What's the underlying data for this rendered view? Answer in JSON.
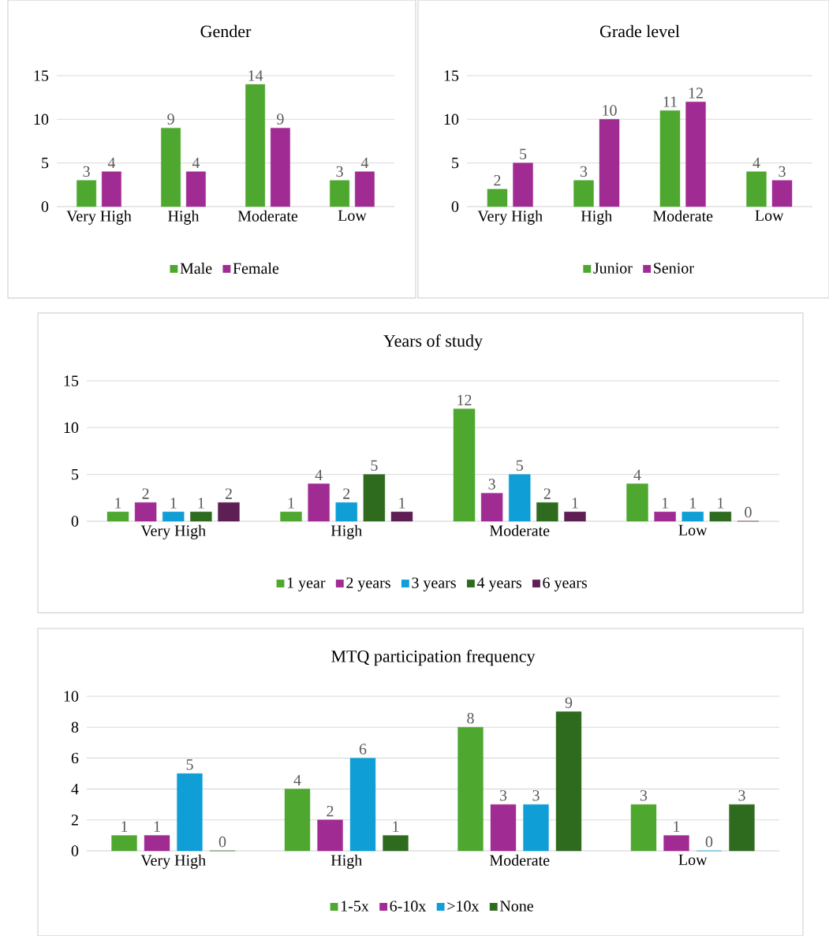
{
  "chart_data": [
    {
      "type": "bar",
      "title": "Gender",
      "categories": [
        "Very High",
        "High",
        "Moderate",
        "Low"
      ],
      "series": [
        {
          "name": "Male",
          "color": "#4ea72e",
          "values": [
            3,
            9,
            14,
            3
          ]
        },
        {
          "name": "Female",
          "color": "#a02b93",
          "values": [
            4,
            4,
            9,
            4
          ]
        }
      ],
      "ylim": [
        0,
        15
      ],
      "yticks": [
        0,
        5,
        10,
        15
      ],
      "grid": "y",
      "legend": "bottom",
      "data_labels": true
    },
    {
      "type": "bar",
      "title": "Grade level",
      "categories": [
        "Very High",
        "High",
        "Moderate",
        "Low"
      ],
      "series": [
        {
          "name": "Junior",
          "color": "#4ea72e",
          "values": [
            2,
            3,
            11,
            4
          ]
        },
        {
          "name": "Senior",
          "color": "#a02b93",
          "values": [
            5,
            10,
            12,
            3
          ]
        }
      ],
      "ylim": [
        0,
        15
      ],
      "yticks": [
        0,
        5,
        10,
        15
      ],
      "grid": "y",
      "legend": "bottom",
      "data_labels": true
    },
    {
      "type": "bar",
      "title": "Years of study",
      "categories": [
        "Very High",
        "High",
        "Moderate",
        "Low"
      ],
      "series": [
        {
          "name": "1 year",
          "color": "#4ea72e",
          "values": [
            1,
            1,
            12,
            4
          ]
        },
        {
          "name": "2 years",
          "color": "#a02b93",
          "values": [
            2,
            4,
            3,
            1
          ]
        },
        {
          "name": "3 years",
          "color": "#0f9ed5",
          "values": [
            1,
            2,
            5,
            1
          ]
        },
        {
          "name": "4 years",
          "color": "#2f6b1f",
          "values": [
            1,
            5,
            2,
            1
          ]
        },
        {
          "name": "6 years",
          "color": "#5e1f55",
          "values": [
            2,
            1,
            1,
            0
          ]
        }
      ],
      "ylim": [
        0,
        15
      ],
      "yticks": [
        0,
        5,
        10,
        15
      ],
      "grid": "y",
      "legend": "bottom",
      "data_labels": true
    },
    {
      "type": "bar",
      "title": "MTQ participation frequency",
      "categories": [
        "Very High",
        "High",
        "Moderate",
        "Low"
      ],
      "series": [
        {
          "name": "1-5x",
          "color": "#4ea72e",
          "values": [
            1,
            4,
            8,
            3
          ]
        },
        {
          "name": "6-10x",
          "color": "#a02b93",
          "values": [
            1,
            2,
            3,
            1
          ]
        },
        {
          "name": ">10x",
          "color": "#0f9ed5",
          "values": [
            5,
            6,
            3,
            0
          ]
        },
        {
          "name": "None",
          "color": "#2f6b1f",
          "values": [
            0,
            1,
            9,
            3
          ]
        }
      ],
      "ylim": [
        0,
        10
      ],
      "yticks": [
        0,
        2,
        4,
        6,
        8,
        10
      ],
      "grid": "y",
      "legend": "bottom",
      "data_labels": true
    }
  ]
}
